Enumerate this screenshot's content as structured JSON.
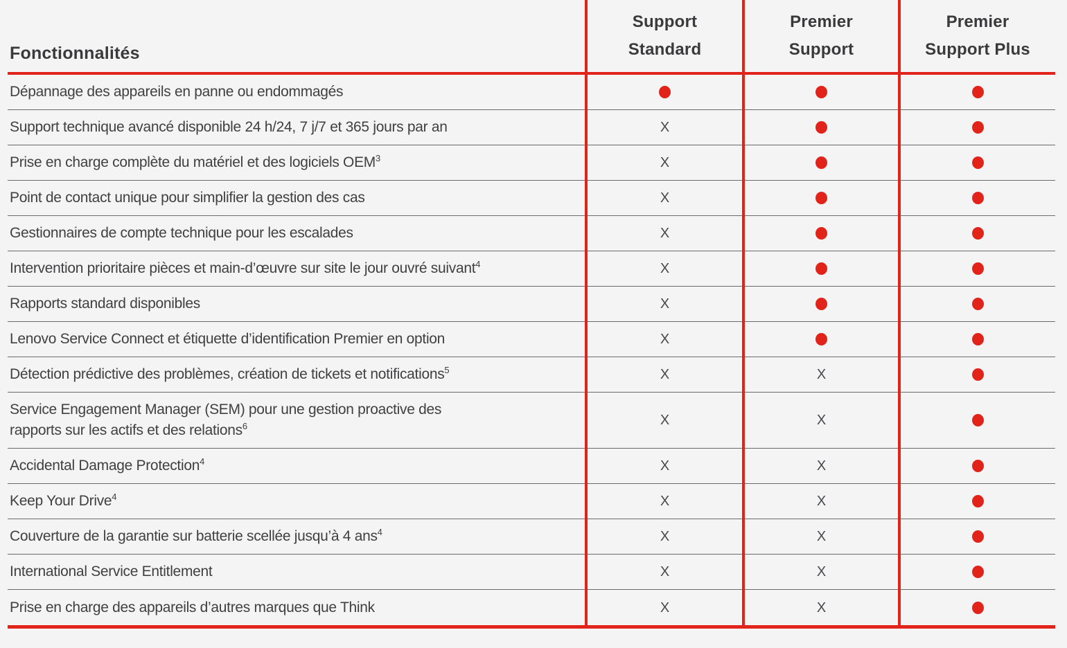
{
  "table": {
    "features_header": "Fonctionnalités",
    "columns": [
      {
        "line1": "Support",
        "line2": "Standard"
      },
      {
        "line1": "Premier",
        "line2": "Support"
      },
      {
        "line1": "Premier",
        "line2": "Support Plus"
      }
    ],
    "marks": {
      "included": "dot",
      "not_included": "X"
    },
    "rows": [
      {
        "label": "Dépannage des appareils en panne ou endommagés",
        "sup": "",
        "cells": [
          "dot",
          "dot",
          "dot"
        ]
      },
      {
        "label": "Support technique avancé disponible 24 h/24, 7 j/7 et 365 jours par an",
        "sup": "",
        "cells": [
          "x",
          "dot",
          "dot"
        ]
      },
      {
        "label": "Prise en charge complète du matériel et des logiciels OEM",
        "sup": "3",
        "cells": [
          "x",
          "dot",
          "dot"
        ]
      },
      {
        "label": "Point de contact unique pour simplifier la gestion des cas",
        "sup": "",
        "cells": [
          "x",
          "dot",
          "dot"
        ]
      },
      {
        "label": "Gestionnaires de compte technique pour les escalades",
        "sup": "",
        "cells": [
          "x",
          "dot",
          "dot"
        ]
      },
      {
        "label": "Intervention prioritaire pièces et main-d’œuvre sur site le jour ouvré suivant",
        "sup": "4",
        "cells": [
          "x",
          "dot",
          "dot"
        ]
      },
      {
        "label": "Rapports standard disponibles",
        "sup": "",
        "cells": [
          "x",
          "dot",
          "dot"
        ]
      },
      {
        "label": "Lenovo Service Connect et étiquette d’identification Premier en option",
        "sup": "",
        "cells": [
          "x",
          "dot",
          "dot"
        ]
      },
      {
        "label": "Détection prédictive des problèmes, création de tickets et notifications",
        "sup": "5",
        "cells": [
          "x",
          "x",
          "dot"
        ]
      },
      {
        "label": "Service Engagement Manager (SEM) pour une gestion proactive des",
        "label2": "rapports sur les actifs et des relations",
        "sup": "6",
        "cells": [
          "x",
          "x",
          "dot"
        ]
      },
      {
        "label": "Accidental Damage Protection",
        "sup": "4",
        "cells": [
          "x",
          "x",
          "dot"
        ]
      },
      {
        "label": "Keep Your Drive",
        "sup": "4",
        "cells": [
          "x",
          "x",
          "dot"
        ]
      },
      {
        "label": "Couverture de la garantie sur batterie scellée jusqu’à 4 ans",
        "sup": "4",
        "cells": [
          "x",
          "x",
          "dot"
        ]
      },
      {
        "label": "International Service Entitlement",
        "sup": "",
        "cells": [
          "x",
          "x",
          "dot"
        ]
      },
      {
        "label": "Prise en charge des appareils d’autres marques que Think",
        "sup": "",
        "cells": [
          "x",
          "x",
          "dot"
        ]
      }
    ]
  },
  "colors": {
    "accent_red": "#e2231a",
    "background": "#f5f4f4",
    "header_text": "#3a3a3c",
    "body_text": "#3f4042",
    "x_mark": "#45484d",
    "row_divider": "#68696b"
  }
}
